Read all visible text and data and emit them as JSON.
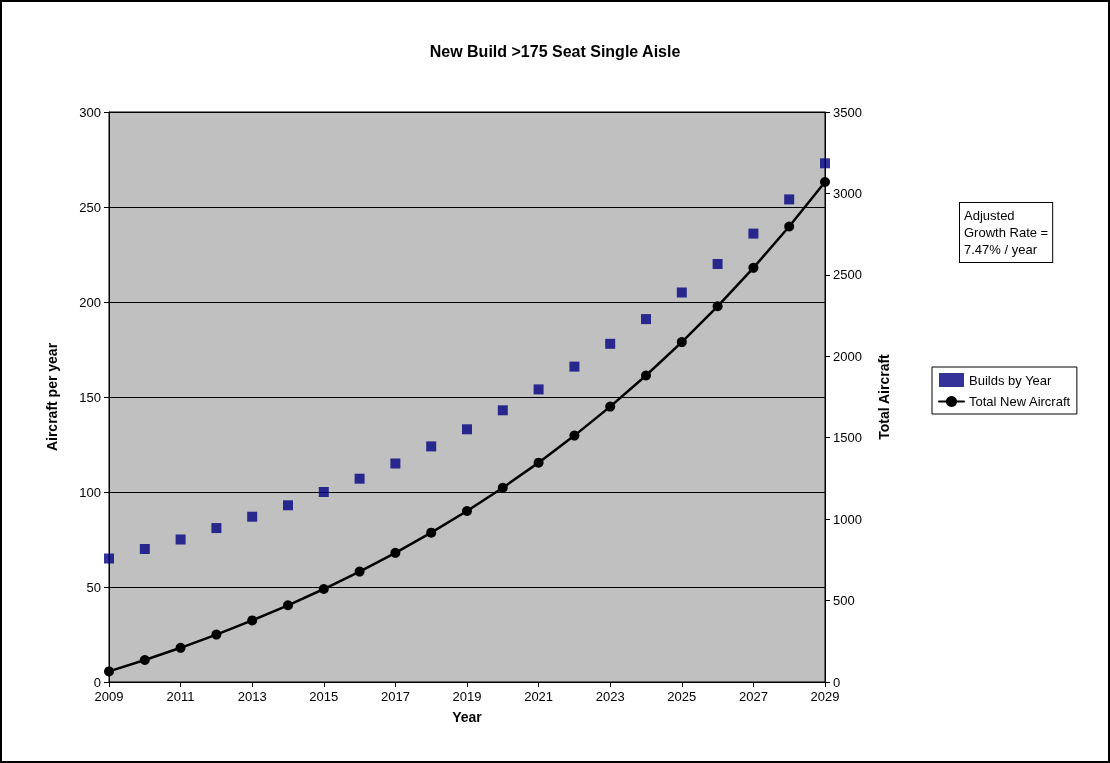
{
  "chart_data": {
    "type": "scatter",
    "title": "New Build >175 Seat Single Aisle",
    "xlabel": "Year",
    "ylabel": "Aircraft per year",
    "y2label": "Total Aircraft",
    "x": [
      2009,
      2010,
      2011,
      2012,
      2013,
      2014,
      2015,
      2016,
      2017,
      2018,
      2019,
      2020,
      2021,
      2022,
      2023,
      2024,
      2025,
      2026,
      2027,
      2028,
      2029
    ],
    "series": [
      {
        "name": "Builds by Year",
        "marker": "square",
        "color": "#000080",
        "values": [
          65,
          70,
          75,
          81,
          87,
          93,
          100,
          107,
          115,
          124,
          133,
          143,
          154,
          166,
          178,
          191,
          205,
          220,
          236,
          254,
          273
        ]
      },
      {
        "name": "Total New Aircraft",
        "type": "line",
        "marker": "circle",
        "line_style": "solid",
        "axis": "y2",
        "color": "#000000",
        "values": [
          65,
          135,
          210,
          291,
          378,
          471,
          571,
          678,
          793,
          917,
          1050,
          1193,
          1347,
          1513,
          1691,
          1882,
          2087,
          2307,
          2543,
          2797,
          3070
        ]
      }
    ],
    "xlim": [
      2009,
      2029
    ],
    "xticks": [
      2009,
      2011,
      2013,
      2015,
      2017,
      2019,
      2021,
      2023,
      2025,
      2027,
      2029
    ],
    "ylim": [
      0,
      300
    ],
    "yticks": [
      0,
      50,
      100,
      150,
      200,
      250,
      300
    ],
    "y2lim": [
      0,
      3500
    ],
    "y2ticks": [
      0,
      500,
      1000,
      1500,
      2000,
      2500,
      3000,
      3500
    ],
    "grid": "y",
    "legend": "right",
    "annotations": [
      "Adjusted\nGrowth Rate =\n7.47% / year"
    ]
  }
}
